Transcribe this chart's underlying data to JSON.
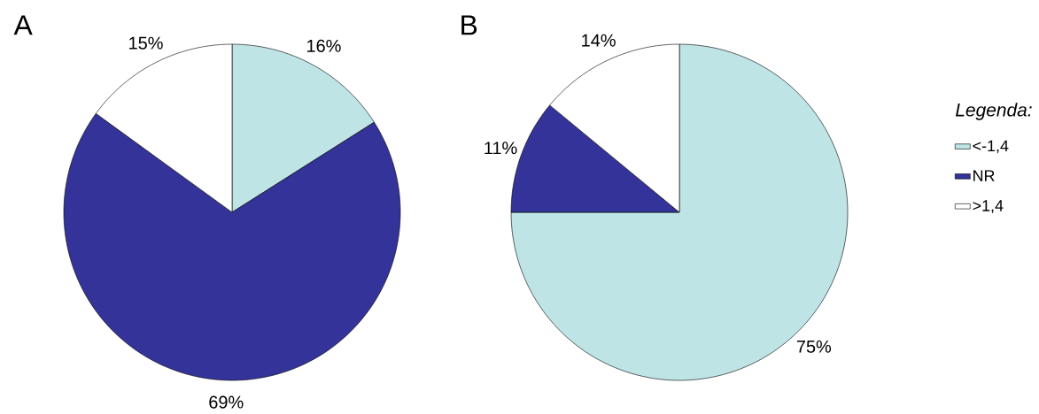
{
  "chart_data": [
    {
      "type": "pie",
      "title": "A",
      "categories": [
        null,
        null,
        null
      ],
      "values": [
        16,
        69,
        15
      ],
      "colors": [
        "#bfe4e6",
        "#333399",
        "#ffffff"
      ],
      "value_labels": [
        "16%",
        "69%",
        "15%"
      ]
    },
    {
      "type": "pie",
      "title": "B",
      "categories": [
        "<-1,4",
        "NR",
        ">1,4"
      ],
      "values": [
        75,
        11,
        14
      ],
      "colors": [
        "#bfe4e6",
        "#333399",
        "#ffffff"
      ],
      "value_labels": [
        "75%",
        "11%",
        "14%"
      ],
      "legend": "right",
      "legend_title": "Legenda:"
    }
  ]
}
